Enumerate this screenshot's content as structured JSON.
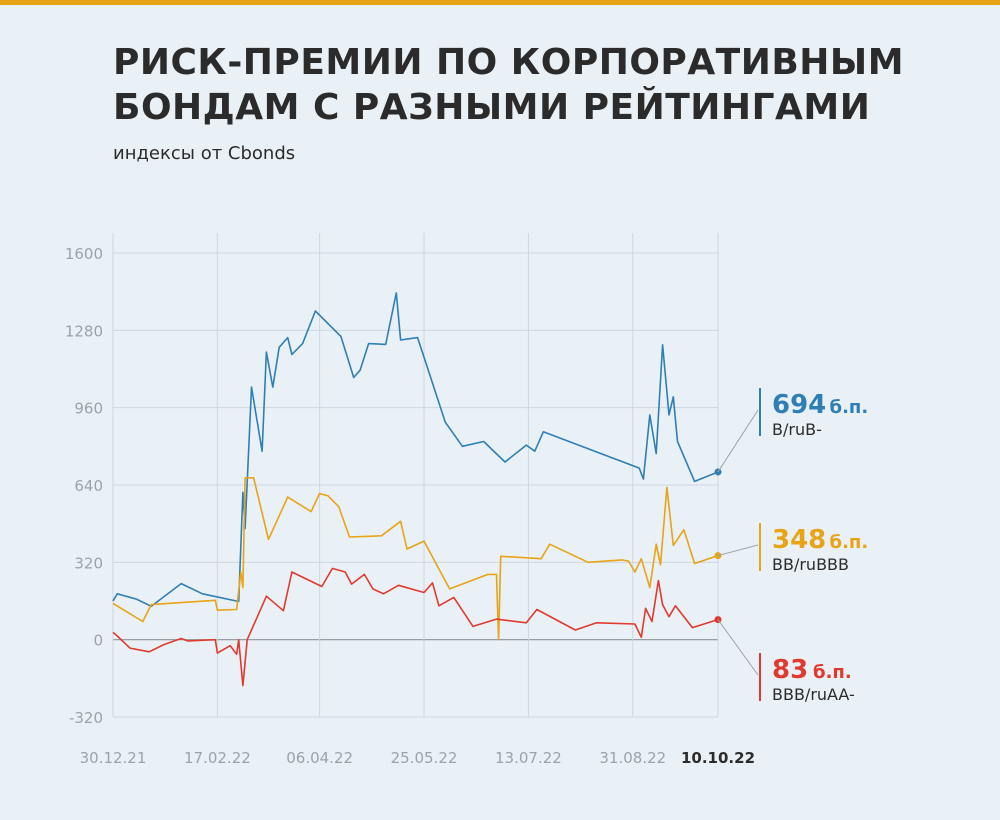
{
  "title_line1": "РИСК-ПРЕМИИ ПО КОРПОРАТИВНЫМ",
  "title_line2": "БОНДАМ С РАЗНЫМИ РЕЙТИНГАМИ",
  "subtitle": "индексы от Cbonds",
  "colors": {
    "background": "#eaf1f6",
    "accent_bar": "#e8a316",
    "grid": "#ccd6df",
    "axis_text": "#9aa3ab",
    "blue": "#2f7fb5",
    "yellow": "#e8a316",
    "red": "#e03a2e"
  },
  "chart_data": {
    "type": "line",
    "title": "РИСК-ПРЕМИИ ПО КОРПОРАТИВНЫМ БОНДАМ С РАЗНЫМИ РЕЙТИНГАМИ",
    "subtitle": "индексы от Cbonds",
    "xlabel": "",
    "ylabel": "",
    "ylim": [
      -320,
      1600
    ],
    "xlim": [
      "2021-12-30",
      "2022-10-10"
    ],
    "yticks": [
      1600,
      1280,
      960,
      640,
      320,
      0,
      -320
    ],
    "ytick_labels": [
      "1600",
      "1280",
      "960",
      "640",
      "320",
      "0",
      "-320"
    ],
    "xticks": [
      "2021-12-30",
      "2022-02-17",
      "2022-04-06",
      "2022-05-25",
      "2022-07-13",
      "2022-08-31",
      "2022-10-10"
    ],
    "xtick_labels": [
      "30.12.21",
      "17.02.22",
      "06.04.22",
      "25.05.22",
      "13.07.22",
      "31.08.22",
      "10.10.22"
    ],
    "grid": true,
    "series": [
      {
        "name": "B/ruB-",
        "color_key": "blue",
        "end_value_label": "694",
        "end_unit": "б.п.",
        "points": [
          [
            "2021-12-30",
            160
          ],
          [
            "2022-01-01",
            190
          ],
          [
            "2022-01-10",
            168
          ],
          [
            "2022-01-17",
            138
          ],
          [
            "2022-01-31",
            232
          ],
          [
            "2022-02-10",
            190
          ],
          [
            "2022-02-27",
            158
          ],
          [
            "2022-03-01",
            610
          ],
          [
            "2022-03-02",
            460
          ],
          [
            "2022-03-05",
            1045
          ],
          [
            "2022-03-10",
            780
          ],
          [
            "2022-03-12",
            1190
          ],
          [
            "2022-03-15",
            1045
          ],
          [
            "2022-03-18",
            1210
          ],
          [
            "2022-03-22",
            1250
          ],
          [
            "2022-03-24",
            1180
          ],
          [
            "2022-03-29",
            1225
          ],
          [
            "2022-04-04",
            1360
          ],
          [
            "2022-04-16",
            1255
          ],
          [
            "2022-04-22",
            1085
          ],
          [
            "2022-04-25",
            1115
          ],
          [
            "2022-04-29",
            1225
          ],
          [
            "2022-05-07",
            1222
          ],
          [
            "2022-05-12",
            1435
          ],
          [
            "2022-05-14",
            1240
          ],
          [
            "2022-05-22",
            1250
          ],
          [
            "2022-06-04",
            900
          ],
          [
            "2022-06-12",
            800
          ],
          [
            "2022-06-22",
            820
          ],
          [
            "2022-07-02",
            735
          ],
          [
            "2022-07-12",
            805
          ],
          [
            "2022-07-16",
            780
          ],
          [
            "2022-07-20",
            860
          ],
          [
            "2022-09-03",
            710
          ],
          [
            "2022-09-05",
            665
          ],
          [
            "2022-09-08",
            930
          ],
          [
            "2022-09-11",
            770
          ],
          [
            "2022-09-14",
            1220
          ],
          [
            "2022-09-17",
            930
          ],
          [
            "2022-09-19",
            1005
          ],
          [
            "2022-09-21",
            820
          ],
          [
            "2022-09-29",
            655
          ],
          [
            "2022-10-10",
            694
          ]
        ]
      },
      {
        "name": "BB/ruBBB",
        "color_key": "yellow",
        "end_value_label": "348",
        "end_unit": "б.п.",
        "points": [
          [
            "2021-12-30",
            150
          ],
          [
            "2022-01-13",
            75
          ],
          [
            "2022-01-17",
            145
          ],
          [
            "2022-02-16",
            163
          ],
          [
            "2022-02-17",
            122
          ],
          [
            "2022-02-26",
            125
          ],
          [
            "2022-02-28",
            280
          ],
          [
            "2022-03-01",
            215
          ],
          [
            "2022-03-02",
            670
          ],
          [
            "2022-03-06",
            670
          ],
          [
            "2022-03-13",
            415
          ],
          [
            "2022-03-22",
            590
          ],
          [
            "2022-04-02",
            530
          ],
          [
            "2022-04-06",
            605
          ],
          [
            "2022-04-10",
            595
          ],
          [
            "2022-04-15",
            550
          ],
          [
            "2022-04-20",
            425
          ],
          [
            "2022-05-05",
            430
          ],
          [
            "2022-05-14",
            490
          ],
          [
            "2022-05-17",
            375
          ],
          [
            "2022-05-25",
            408
          ],
          [
            "2022-06-06",
            210
          ],
          [
            "2022-06-24",
            270
          ],
          [
            "2022-06-28",
            270
          ],
          [
            "2022-06-29",
            0
          ],
          [
            "2022-06-30",
            345
          ],
          [
            "2022-07-19",
            335
          ],
          [
            "2022-07-23",
            395
          ],
          [
            "2022-08-10",
            320
          ],
          [
            "2022-08-26",
            330
          ],
          [
            "2022-08-29",
            325
          ],
          [
            "2022-09-01",
            280
          ],
          [
            "2022-09-04",
            335
          ],
          [
            "2022-09-08",
            215
          ],
          [
            "2022-09-11",
            395
          ],
          [
            "2022-09-13",
            310
          ],
          [
            "2022-09-16",
            630
          ],
          [
            "2022-09-19",
            390
          ],
          [
            "2022-09-24",
            455
          ],
          [
            "2022-09-29",
            315
          ],
          [
            "2022-10-10",
            348
          ]
        ]
      },
      {
        "name": "BBB/ruAA-",
        "color_key": "red",
        "end_value_label": "83",
        "end_unit": "б.п.",
        "points": [
          [
            "2021-12-30",
            30
          ],
          [
            "2022-01-01",
            15
          ],
          [
            "2022-01-07",
            -35
          ],
          [
            "2022-01-16",
            -50
          ],
          [
            "2022-01-23",
            -20
          ],
          [
            "2022-01-31",
            5
          ],
          [
            "2022-02-03",
            -5
          ],
          [
            "2022-02-16",
            0
          ],
          [
            "2022-02-17",
            -55
          ],
          [
            "2022-02-23",
            -25
          ],
          [
            "2022-02-26",
            -60
          ],
          [
            "2022-02-27",
            0
          ],
          [
            "2022-03-01",
            -190
          ],
          [
            "2022-03-03",
            0
          ],
          [
            "2022-03-12",
            180
          ],
          [
            "2022-03-20",
            120
          ],
          [
            "2022-03-24",
            280
          ],
          [
            "2022-04-07",
            220
          ],
          [
            "2022-04-12",
            295
          ],
          [
            "2022-04-18",
            280
          ],
          [
            "2022-04-21",
            230
          ],
          [
            "2022-04-27",
            270
          ],
          [
            "2022-05-01",
            210
          ],
          [
            "2022-05-06",
            190
          ],
          [
            "2022-05-13",
            225
          ],
          [
            "2022-05-25",
            195
          ],
          [
            "2022-05-29",
            235
          ],
          [
            "2022-06-01",
            140
          ],
          [
            "2022-06-08",
            175
          ],
          [
            "2022-06-17",
            55
          ],
          [
            "2022-06-28",
            85
          ],
          [
            "2022-07-12",
            70
          ],
          [
            "2022-07-17",
            125
          ],
          [
            "2022-08-04",
            40
          ],
          [
            "2022-08-14",
            70
          ],
          [
            "2022-09-01",
            65
          ],
          [
            "2022-09-04",
            10
          ],
          [
            "2022-09-06",
            130
          ],
          [
            "2022-09-09",
            75
          ],
          [
            "2022-09-12",
            245
          ],
          [
            "2022-09-14",
            145
          ],
          [
            "2022-09-17",
            95
          ],
          [
            "2022-09-20",
            140
          ],
          [
            "2022-09-28",
            50
          ],
          [
            "2022-10-10",
            83
          ]
        ]
      }
    ]
  }
}
